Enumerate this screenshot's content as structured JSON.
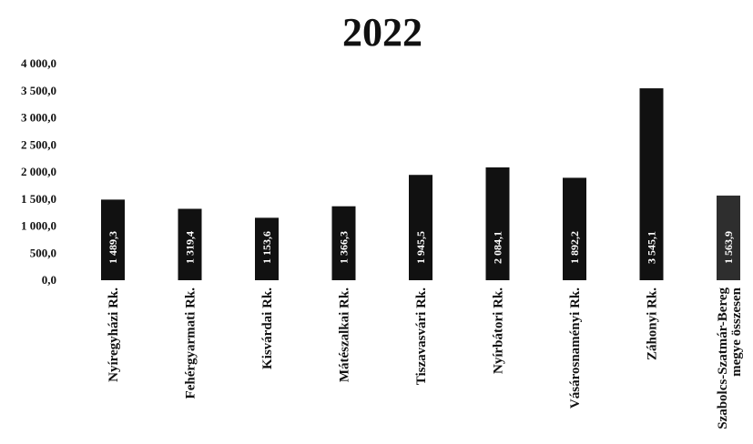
{
  "chart_data": {
    "type": "bar",
    "title": "2022",
    "xlabel": "",
    "ylabel": "",
    "ylim": [
      0,
      4000
    ],
    "yticks": [
      0,
      500,
      1000,
      1500,
      2000,
      2500,
      3000,
      3500,
      4000
    ],
    "ytick_labels": [
      "0,0",
      "500,0",
      "1 000,0",
      "1 500,0",
      "2 000,0",
      "2 500,0",
      "3 000,0",
      "3 500,0",
      "4 000,0"
    ],
    "categories": [
      "Nyíregyházi Rk.",
      "Fehérgyarmati Rk.",
      "Kisvárdai Rk.",
      "Mátészalkai Rk.",
      "Tiszavasvári Rk.",
      "Nyírbátori Rk.",
      "Vásárosnaményi Rk.",
      "Záhonyi Rk.",
      [
        "Szabolcs-Szatmár-Bereg",
        "megye összesen"
      ]
    ],
    "values": [
      1489.3,
      1319.4,
      1153.6,
      1366.3,
      1945.5,
      2084.1,
      1892.2,
      3545.1,
      1563.9
    ],
    "value_labels": [
      "1 489,3",
      "1 319,4",
      "1 153,6",
      "1 366,3",
      "1 945,5",
      "2 084,1",
      "1 892,2",
      "3 545,1",
      "1 563,9"
    ],
    "grid": false,
    "legend": "none",
    "bar_color": "#111111",
    "last_bar_color": "#2e2e2e"
  }
}
